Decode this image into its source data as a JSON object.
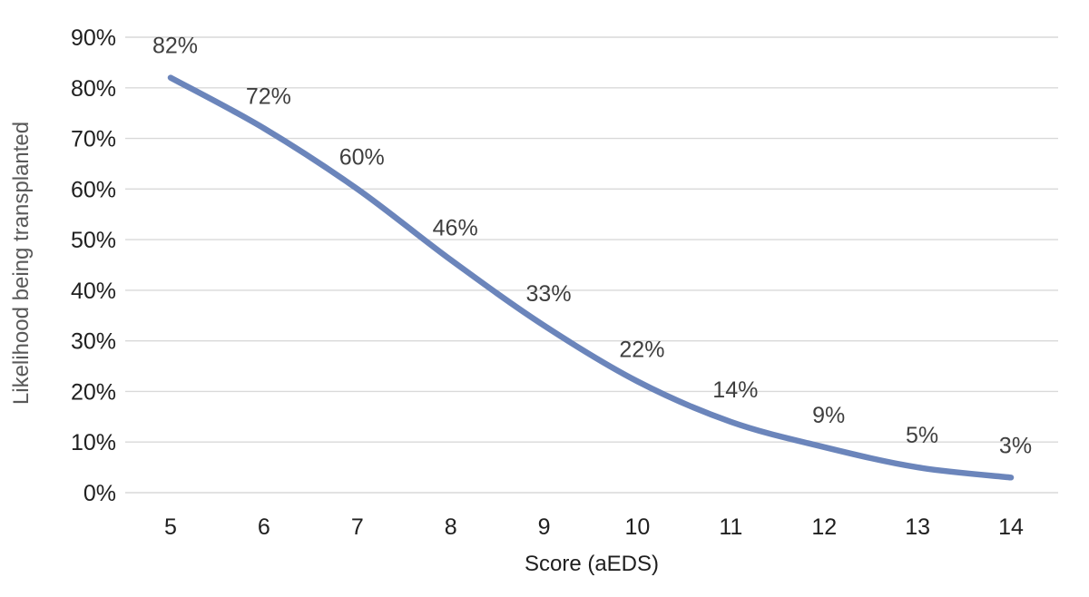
{
  "chart_data": {
    "type": "line",
    "title": "",
    "xlabel": "Score (aEDS)",
    "ylabel": "Likelihood being transplanted",
    "x": [
      5,
      6,
      7,
      8,
      9,
      10,
      11,
      12,
      13,
      14
    ],
    "values": [
      82,
      72,
      60,
      46,
      33,
      22,
      14,
      9,
      5,
      3
    ],
    "data_labels": [
      "82%",
      "72%",
      "60%",
      "46%",
      "33%",
      "22%",
      "14%",
      "9%",
      "5%",
      "3%"
    ],
    "ytick_labels": [
      "0%",
      "10%",
      "20%",
      "30%",
      "40%",
      "50%",
      "60%",
      "70%",
      "80%",
      "90%"
    ],
    "ylim": [
      0,
      90
    ],
    "ytick_step": 10,
    "grid": "horizontal",
    "legend": "none",
    "colors": {
      "line": "#6b85bb",
      "gridline": "#d9d9d9",
      "tick_text": "#202020",
      "data_label_text": "#3f3f3f",
      "y_axis_title_text": "#595959",
      "x_axis_title_text": "#1f1f1f",
      "background": "#ffffff"
    }
  }
}
